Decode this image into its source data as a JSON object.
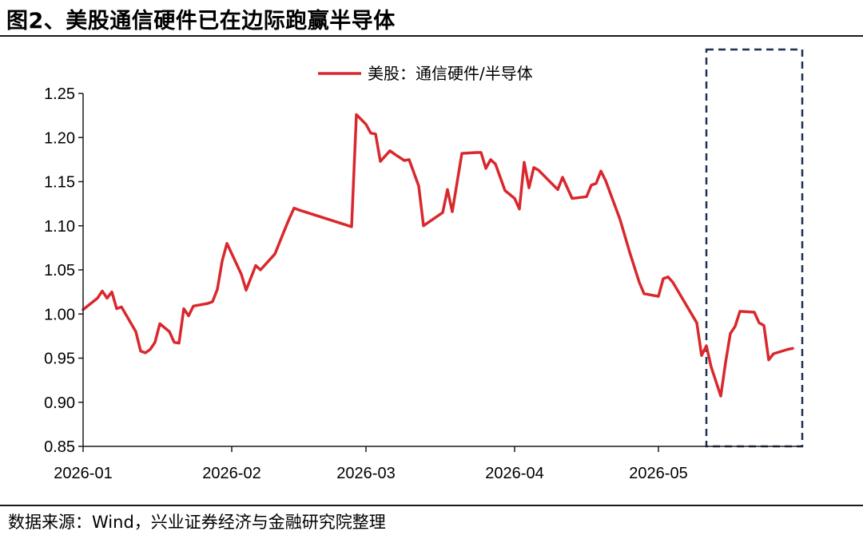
{
  "title": "图2、美股通信硬件已在边际跑赢半导体",
  "source": "数据来源：Wind，兴业证券经济与金融研究院整理",
  "colors": {
    "line": "#d9282d",
    "axis": "#1a1a1a",
    "highlight_box": "#1f3050"
  },
  "chart_data": {
    "type": "line",
    "title": "",
    "xlabel": "",
    "ylabel": "",
    "ylim": [
      0.85,
      1.25
    ],
    "yticks": [
      "1.25",
      "1.20",
      "1.15",
      "1.10",
      "1.05",
      "1.00",
      "0.95",
      "0.90",
      "0.85"
    ],
    "ytick_values": [
      1.25,
      1.2,
      1.15,
      1.1,
      1.05,
      1.0,
      0.95,
      0.9,
      0.85
    ],
    "xlim": [
      "2026-01-01",
      "2026-05-31"
    ],
    "xticks": [
      {
        "label": "2026-01",
        "date": "2026-01-01"
      },
      {
        "label": "2026-02",
        "date": "2026-02-01"
      },
      {
        "label": "2026-03",
        "date": "2026-03-01"
      },
      {
        "label": "2026-04",
        "date": "2026-04-01"
      },
      {
        "label": "2026-05",
        "date": "2026-05-01"
      }
    ],
    "grid": false,
    "legend_position": "top-center",
    "highlight_range": [
      "2026-05-11",
      "2026-05-31"
    ],
    "series": [
      {
        "name": "美股：通信硬件/半导体",
        "points": [
          {
            "x": "2026-01-01",
            "y": 1.005
          },
          {
            "x": "2026-01-04",
            "y": 1.018
          },
          {
            "x": "2026-01-05",
            "y": 1.026
          },
          {
            "x": "2026-01-06",
            "y": 1.018
          },
          {
            "x": "2026-01-07",
            "y": 1.025
          },
          {
            "x": "2026-01-08",
            "y": 1.006
          },
          {
            "x": "2026-01-09",
            "y": 1.008
          },
          {
            "x": "2026-01-12",
            "y": 0.98
          },
          {
            "x": "2026-01-13",
            "y": 0.958
          },
          {
            "x": "2026-01-14",
            "y": 0.956
          },
          {
            "x": "2026-01-15",
            "y": 0.96
          },
          {
            "x": "2026-01-16",
            "y": 0.968
          },
          {
            "x": "2026-01-17",
            "y": 0.989
          },
          {
            "x": "2026-01-19",
            "y": 0.98
          },
          {
            "x": "2026-01-20",
            "y": 0.968
          },
          {
            "x": "2026-01-21",
            "y": 0.967
          },
          {
            "x": "2026-01-22",
            "y": 1.006
          },
          {
            "x": "2026-01-23",
            "y": 0.998
          },
          {
            "x": "2026-01-24",
            "y": 1.009
          },
          {
            "x": "2026-01-27",
            "y": 1.012
          },
          {
            "x": "2026-01-28",
            "y": 1.014
          },
          {
            "x": "2026-01-29",
            "y": 1.028
          },
          {
            "x": "2026-01-30",
            "y": 1.06
          },
          {
            "x": "2026-01-31",
            "y": 1.08
          },
          {
            "x": "2026-02-03",
            "y": 1.045
          },
          {
            "x": "2026-02-04",
            "y": 1.027
          },
          {
            "x": "2026-02-06",
            "y": 1.055
          },
          {
            "x": "2026-02-07",
            "y": 1.05
          },
          {
            "x": "2026-02-10",
            "y": 1.068
          },
          {
            "x": "2026-02-12",
            "y": 1.095
          },
          {
            "x": "2026-02-13",
            "y": 1.108
          },
          {
            "x": "2026-02-14",
            "y": 1.12
          },
          {
            "x": "2026-02-15",
            "y": 1.118
          },
          {
            "x": "2026-02-26",
            "y": 1.099
          },
          {
            "x": "2026-02-27",
            "y": 1.226
          },
          {
            "x": "2026-03-01",
            "y": 1.215
          },
          {
            "x": "2026-03-02",
            "y": 1.205
          },
          {
            "x": "2026-03-03",
            "y": 1.204
          },
          {
            "x": "2026-03-04",
            "y": 1.173
          },
          {
            "x": "2026-03-06",
            "y": 1.185
          },
          {
            "x": "2026-03-07",
            "y": 1.181
          },
          {
            "x": "2026-03-09",
            "y": 1.174
          },
          {
            "x": "2026-03-10",
            "y": 1.175
          },
          {
            "x": "2026-03-12",
            "y": 1.145
          },
          {
            "x": "2026-03-13",
            "y": 1.1
          },
          {
            "x": "2026-03-17",
            "y": 1.115
          },
          {
            "x": "2026-03-18",
            "y": 1.141
          },
          {
            "x": "2026-03-19",
            "y": 1.116
          },
          {
            "x": "2026-03-21",
            "y": 1.182
          },
          {
            "x": "2026-03-24",
            "y": 1.183
          },
          {
            "x": "2026-03-25",
            "y": 1.183
          },
          {
            "x": "2026-03-26",
            "y": 1.165
          },
          {
            "x": "2026-03-27",
            "y": 1.175
          },
          {
            "x": "2026-03-28",
            "y": 1.17
          },
          {
            "x": "2026-03-30",
            "y": 1.14
          },
          {
            "x": "2026-04-01",
            "y": 1.131
          },
          {
            "x": "2026-04-02",
            "y": 1.119
          },
          {
            "x": "2026-04-03",
            "y": 1.172
          },
          {
            "x": "2026-04-04",
            "y": 1.143
          },
          {
            "x": "2026-04-05",
            "y": 1.166
          },
          {
            "x": "2026-04-06",
            "y": 1.163
          },
          {
            "x": "2026-04-08",
            "y": 1.152
          },
          {
            "x": "2026-04-10",
            "y": 1.141
          },
          {
            "x": "2026-04-11",
            "y": 1.155
          },
          {
            "x": "2026-04-13",
            "y": 1.131
          },
          {
            "x": "2026-04-16",
            "y": 1.133
          },
          {
            "x": "2026-04-17",
            "y": 1.146
          },
          {
            "x": "2026-04-18",
            "y": 1.148
          },
          {
            "x": "2026-04-19",
            "y": 1.162
          },
          {
            "x": "2026-04-20",
            "y": 1.151
          },
          {
            "x": "2026-04-23",
            "y": 1.107
          },
          {
            "x": "2026-04-25",
            "y": 1.07
          },
          {
            "x": "2026-04-27",
            "y": 1.036
          },
          {
            "x": "2026-04-28",
            "y": 1.023
          },
          {
            "x": "2026-05-01",
            "y": 1.02
          },
          {
            "x": "2026-05-02",
            "y": 1.04
          },
          {
            "x": "2026-05-03",
            "y": 1.042
          },
          {
            "x": "2026-05-04",
            "y": 1.036
          },
          {
            "x": "2026-05-09",
            "y": 0.99
          },
          {
            "x": "2026-05-10",
            "y": 0.953
          },
          {
            "x": "2026-05-11",
            "y": 0.964
          },
          {
            "x": "2026-05-12",
            "y": 0.94
          },
          {
            "x": "2026-05-14",
            "y": 0.907
          },
          {
            "x": "2026-05-15",
            "y": 0.945
          },
          {
            "x": "2026-05-16",
            "y": 0.978
          },
          {
            "x": "2026-05-17",
            "y": 0.986
          },
          {
            "x": "2026-05-18",
            "y": 1.003
          },
          {
            "x": "2026-05-21",
            "y": 1.002
          },
          {
            "x": "2026-05-22",
            "y": 0.99
          },
          {
            "x": "2026-05-23",
            "y": 0.987
          },
          {
            "x": "2026-05-24",
            "y": 0.948
          },
          {
            "x": "2026-05-25",
            "y": 0.955
          },
          {
            "x": "2026-05-28",
            "y": 0.96
          },
          {
            "x": "2026-05-29",
            "y": 0.961
          }
        ]
      }
    ]
  }
}
